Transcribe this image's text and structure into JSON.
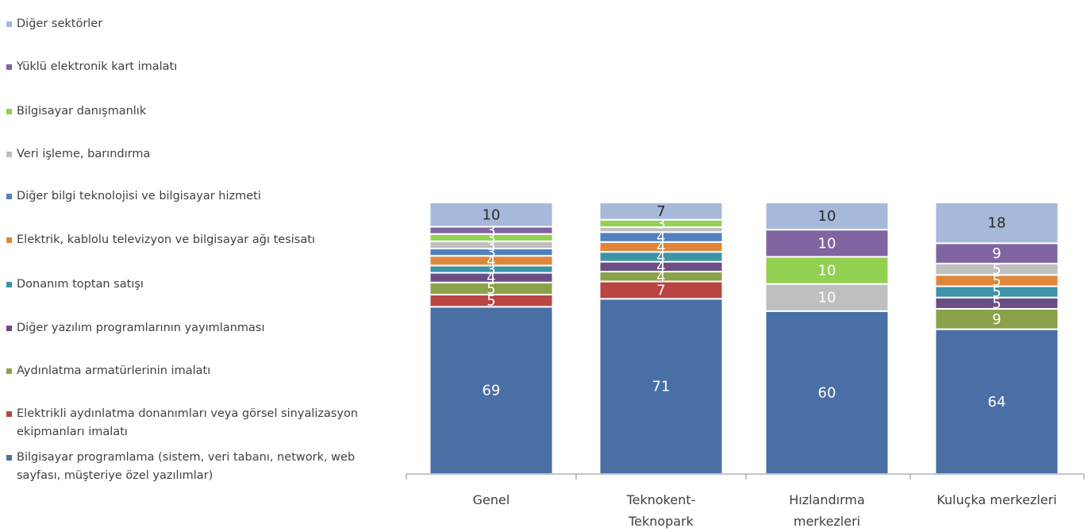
{
  "chart_data": {
    "type": "bar",
    "stacked": true,
    "percent_stacked": true,
    "title": "",
    "xlabel": "",
    "ylabel": "",
    "categories": [
      [
        "Genel"
      ],
      [
        "Teknokent-",
        "Teknopark"
      ],
      [
        "Hızlandırma",
        "merkezleri"
      ],
      [
        "Kuluçka merkezleri"
      ]
    ],
    "legend_position": "left",
    "grid": false,
    "series": [
      {
        "name": "Bilgisayar programlama (sistem, veri tabanı, network, web sayfası, müşteriye özel yazılımlar)",
        "color": "#4a6fa5",
        "values": [
          69,
          71,
          60,
          64
        ],
        "labels": [
          "69",
          "71",
          "60",
          "64"
        ]
      },
      {
        "name": "Elektrikli aydınlatma donanımları veya görsel sinyalizasyon ekipmanları imalatı",
        "color": "#b94441",
        "values": [
          5,
          7,
          0,
          0
        ],
        "labels": [
          "5",
          "7",
          "0",
          "0"
        ]
      },
      {
        "name": "Aydınlatma armatürlerinin imalatı",
        "color": "#8aa24a",
        "values": [
          5,
          4,
          0,
          9
        ],
        "labels": [
          "5",
          "4",
          "",
          "9"
        ]
      },
      {
        "name": "Diğer yazılım programlarının yayımlanması",
        "color": "#6b4e85",
        "values": [
          4,
          4,
          0,
          5
        ],
        "labels": [
          "4",
          "4",
          "",
          "5"
        ]
      },
      {
        "name": "Donanım toptan satışı",
        "color": "#3d93a8",
        "values": [
          3,
          4,
          0,
          5
        ],
        "labels": [
          "3",
          "4",
          "",
          "5"
        ]
      },
      {
        "name": "Elektrik, kablolu televizyon ve bilgisayar ağı tesisatı",
        "color": "#e0863a",
        "values": [
          4,
          4,
          0,
          5
        ],
        "labels": [
          "4",
          "4",
          "",
          "5"
        ]
      },
      {
        "name": "Diğer bilgi teknolojisi ve bilgisayar hizmeti",
        "color": "#4f81bd",
        "values": [
          3,
          4,
          0,
          0
        ],
        "labels": [
          "3",
          "4",
          "",
          ""
        ]
      },
      {
        "name": "Veri işleme, barındırma",
        "color": "#bfbfbf",
        "values": [
          3,
          2,
          10,
          5
        ],
        "labels": [
          "3",
          "",
          "10",
          "5"
        ]
      },
      {
        "name": "Bilgisayar danışmanlık",
        "color": "#92d050",
        "values": [
          3,
          3,
          10,
          0
        ],
        "labels": [
          "3",
          "3",
          "10",
          ""
        ]
      },
      {
        "name": "Yüklü elektronik kart imalatı",
        "color": "#8064a2",
        "values": [
          3,
          0,
          10,
          9
        ],
        "labels": [
          "3",
          "",
          "10",
          "9"
        ]
      },
      {
        "name": "Diğer sektörler",
        "color": "#a6b9d9",
        "values": [
          10,
          7,
          10,
          18
        ],
        "labels": [
          "10",
          "7",
          "10",
          "18"
        ]
      }
    ]
  }
}
